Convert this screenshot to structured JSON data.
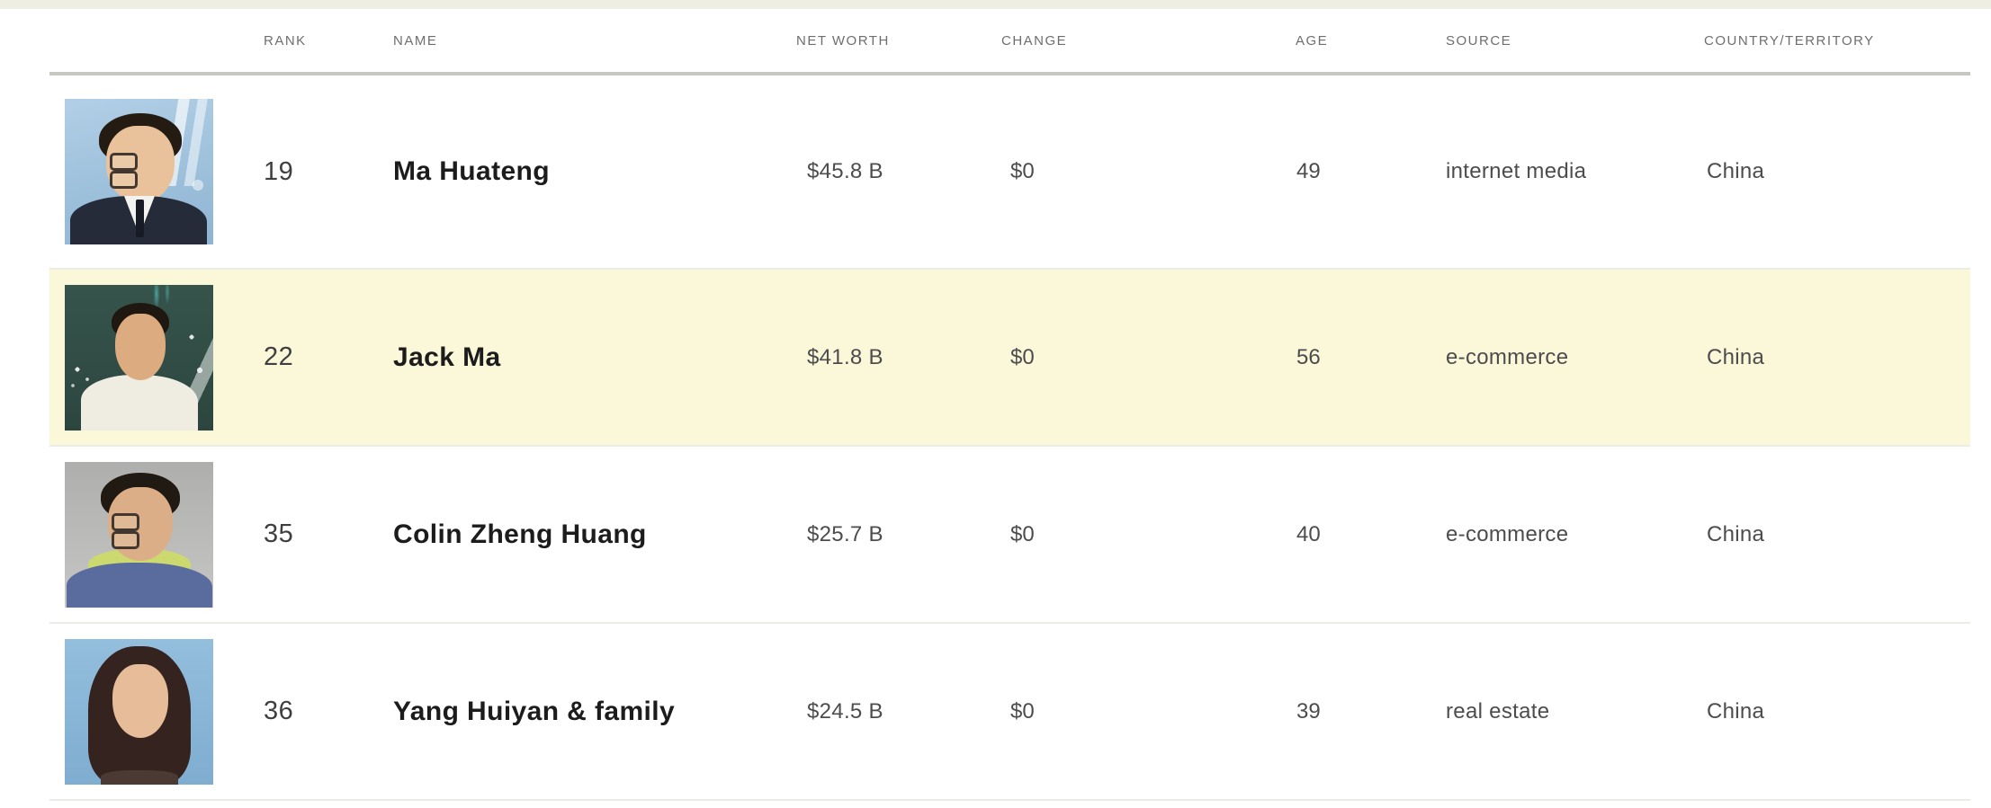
{
  "table": {
    "header": {
      "rank": "RANK",
      "name": "NAME",
      "net_worth": "NET WORTH",
      "change": "CHANGE",
      "age": "AGE",
      "source": "SOURCE",
      "country": "COUNTRY/TERRITORY"
    },
    "rows": [
      {
        "rank": "19",
        "name": "Ma Huateng",
        "net_worth": "$45.8 B",
        "change": "$0",
        "age": "49",
        "source": "internet media",
        "country": "China",
        "photo": "portrait-ma-huateng",
        "highlighted": false
      },
      {
        "rank": "22",
        "name": "Jack Ma",
        "net_worth": "$41.8 B",
        "change": "$0",
        "age": "56",
        "source": "e-commerce",
        "country": "China",
        "photo": "portrait-jack-ma",
        "highlighted": true
      },
      {
        "rank": "35",
        "name": "Colin Zheng Huang",
        "net_worth": "$25.7 B",
        "change": "$0",
        "age": "40",
        "source": "e-commerce",
        "country": "China",
        "photo": "portrait-colin-zheng-huang",
        "highlighted": false
      },
      {
        "rank": "36",
        "name": "Yang Huiyan & family",
        "net_worth": "$24.5 B",
        "change": "$0",
        "age": "39",
        "source": "real estate",
        "country": "China",
        "photo": "portrait-yang-huiyan",
        "highlighted": false
      }
    ]
  },
  "colors": {
    "highlight_row": "#fbf8da",
    "top_strip": "#eeeee3",
    "header_text": "#6e6e6e",
    "header_divider": "#c7c7c1",
    "row_separator": "#ecece7",
    "name_text": "#1c1c1c",
    "value_text": "#4c4c4c"
  }
}
